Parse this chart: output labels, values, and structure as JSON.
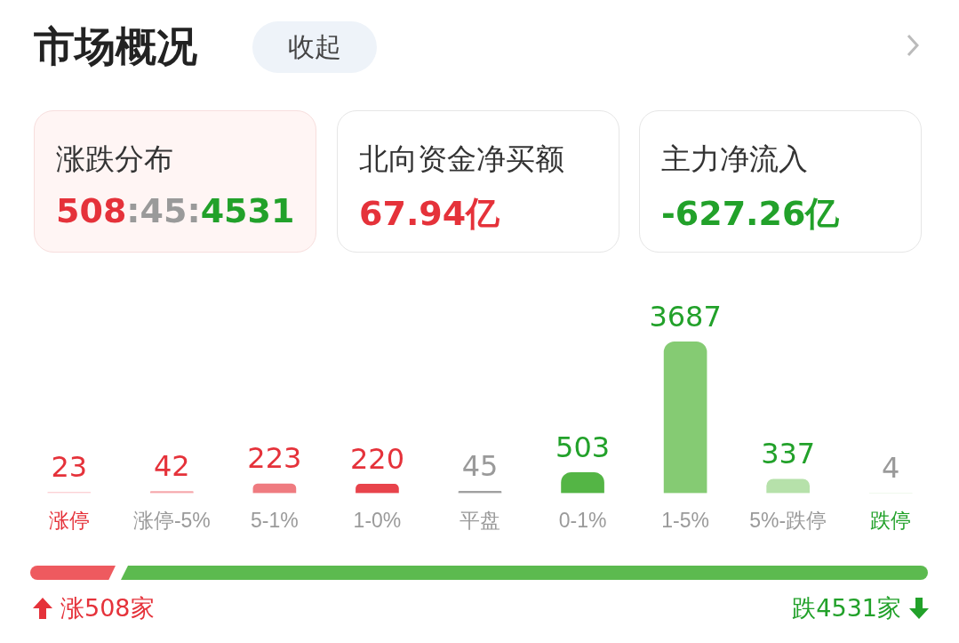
{
  "chart_data": [
    {
      "type": "other",
      "title": "市场概况",
      "annotations": [
        "收起",
        "涨跌分布",
        "508:45:4531",
        "北向资金净买额",
        "67.94亿",
        "主力净流入",
        "-627.26亿"
      ]
    },
    {
      "type": "bar",
      "categories": [
        "涨停",
        "涨停-5%",
        "5-1%",
        "1-0%",
        "平盘",
        "0-1%",
        "1-5%",
        "5%-跌停",
        "跌停"
      ],
      "values": [
        23,
        42,
        223,
        220,
        45,
        503,
        3687,
        337,
        4
      ],
      "colors": [
        "#fcd3d6",
        "#f6a7ab",
        "#ef7b80",
        "#e8434b",
        "#a0a0a0",
        "#54b545",
        "#85cb73",
        "#b6e1aa",
        "#d7efd0"
      ],
      "data_labels": true
    },
    {
      "type": "other",
      "annotations": [
        "涨508家",
        "跌4531家"
      ]
    }
  ]
}
